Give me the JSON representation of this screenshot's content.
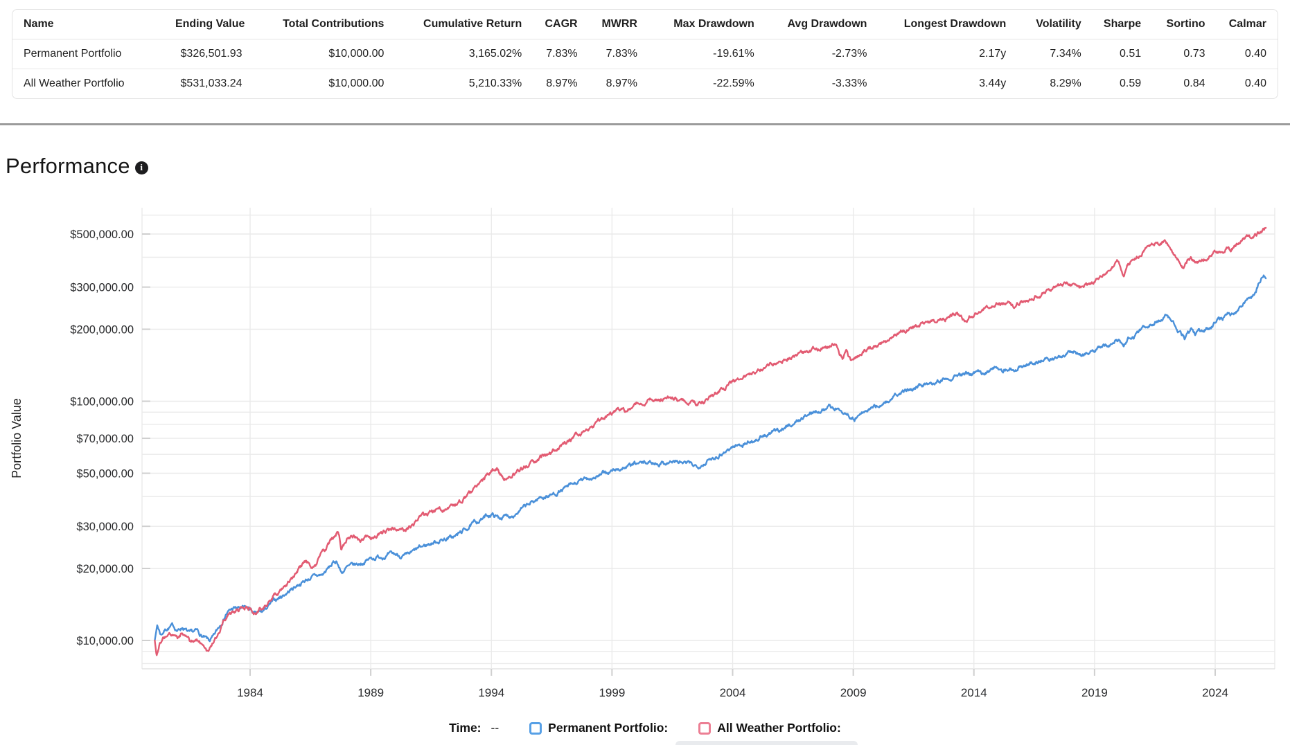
{
  "table": {
    "headers": [
      "Name",
      "Ending Value",
      "Total Contributions",
      "Cumulative Return",
      "CAGR",
      "MWRR",
      "Max Drawdown",
      "Avg Drawdown",
      "Longest Drawdown",
      "Volatility",
      "Sharpe",
      "Sortino",
      "Calmar"
    ],
    "rows": [
      {
        "name": "Permanent Portfolio",
        "values": [
          "$326,501.93",
          "$10,000.00",
          "3,165.02%",
          "7.83%",
          "7.83%",
          "-19.61%",
          "-2.73%",
          "2.17y",
          "7.34%",
          "0.51",
          "0.73",
          "0.40"
        ]
      },
      {
        "name": "All Weather Portfolio",
        "values": [
          "$531,033.24",
          "$10,000.00",
          "5,210.33%",
          "8.97%",
          "8.97%",
          "-22.59%",
          "-3.33%",
          "3.44y",
          "8.29%",
          "0.59",
          "0.84",
          "0.40"
        ]
      }
    ]
  },
  "performance": {
    "title": "Performance",
    "info_icon": "info-icon"
  },
  "chart_data": {
    "type": "line",
    "title": "Performance",
    "xlabel": "",
    "ylabel": "Portfolio Value",
    "y_scale": "log",
    "grid": true,
    "x_range": [
      1980.05,
      2026.1
    ],
    "y_range": [
      8000,
      620000
    ],
    "x_ticks": [
      1984,
      1989,
      1994,
      1999,
      2004,
      2009,
      2014,
      2019,
      2024
    ],
    "y_ticks": [
      {
        "value": 500000,
        "label": "$500,000.00"
      },
      {
        "value": 300000,
        "label": "$300,000.00"
      },
      {
        "value": 200000,
        "label": "$200,000.00"
      },
      {
        "value": 100000,
        "label": "$100,000.00"
      },
      {
        "value": 70000,
        "label": "$70,000.00"
      },
      {
        "value": 50000,
        "label": "$50,000.00"
      },
      {
        "value": 30000,
        "label": "$30,000.00"
      },
      {
        "value": 20000,
        "label": "$20,000.00"
      },
      {
        "value": 10000,
        "label": "$10,000.00"
      }
    ],
    "series": [
      {
        "name": "Permanent Portfolio",
        "color": "#4a90d9",
        "points": [
          [
            1980.05,
            10000
          ],
          [
            1980.15,
            11600
          ],
          [
            1980.3,
            10600
          ],
          [
            1980.5,
            11200
          ],
          [
            1980.8,
            11500
          ],
          [
            1981.0,
            11000
          ],
          [
            1981.2,
            11400
          ],
          [
            1981.5,
            10600
          ],
          [
            1981.8,
            10900
          ],
          [
            1982.0,
            10400
          ],
          [
            1982.3,
            9900
          ],
          [
            1982.5,
            10300
          ],
          [
            1982.7,
            11300
          ],
          [
            1983.0,
            13000
          ],
          [
            1983.3,
            13600
          ],
          [
            1983.7,
            13600
          ],
          [
            1984.0,
            13500
          ],
          [
            1984.2,
            12800
          ],
          [
            1984.5,
            13100
          ],
          [
            1985.0,
            14600
          ],
          [
            1985.5,
            15800
          ],
          [
            1986.0,
            17200
          ],
          [
            1986.5,
            18300
          ],
          [
            1987.0,
            18800
          ],
          [
            1987.4,
            20800
          ],
          [
            1987.6,
            21500
          ],
          [
            1987.78,
            19200
          ],
          [
            1988.0,
            20100
          ],
          [
            1988.5,
            20800
          ],
          [
            1989.0,
            22000
          ],
          [
            1989.5,
            22600
          ],
          [
            1990.0,
            22800
          ],
          [
            1990.5,
            22400
          ],
          [
            1991.0,
            24200
          ],
          [
            1991.5,
            25500
          ],
          [
            1992.0,
            26500
          ],
          [
            1992.5,
            27200
          ],
          [
            1993.0,
            29500
          ],
          [
            1993.5,
            31800
          ],
          [
            1994.0,
            33800
          ],
          [
            1994.3,
            32600
          ],
          [
            1994.8,
            33300
          ],
          [
            1995.0,
            34200
          ],
          [
            1995.5,
            36500
          ],
          [
            1996.0,
            39500
          ],
          [
            1996.5,
            40600
          ],
          [
            1997.0,
            42800
          ],
          [
            1997.5,
            45200
          ],
          [
            1998.0,
            47600
          ],
          [
            1998.5,
            49000
          ],
          [
            1999.0,
            51000
          ],
          [
            1999.5,
            52800
          ],
          [
            2000.0,
            54400
          ],
          [
            2000.5,
            55400
          ],
          [
            2001.0,
            55200
          ],
          [
            2001.5,
            56000
          ],
          [
            2002.0,
            55000
          ],
          [
            2002.5,
            53600
          ],
          [
            2003.0,
            56500
          ],
          [
            2003.5,
            60500
          ],
          [
            2004.0,
            64500
          ],
          [
            2004.5,
            66500
          ],
          [
            2005.0,
            69500
          ],
          [
            2005.5,
            72500
          ],
          [
            2006.0,
            76500
          ],
          [
            2006.5,
            80500
          ],
          [
            2007.0,
            86500
          ],
          [
            2007.5,
            91500
          ],
          [
            2008.0,
            95500
          ],
          [
            2008.3,
            93000
          ],
          [
            2008.8,
            88000
          ],
          [
            2009.05,
            83500
          ],
          [
            2009.3,
            88000
          ],
          [
            2009.8,
            93500
          ],
          [
            2010.0,
            95500
          ],
          [
            2010.5,
            101000
          ],
          [
            2011.0,
            108000
          ],
          [
            2011.5,
            114500
          ],
          [
            2012.0,
            118500
          ],
          [
            2012.5,
            122500
          ],
          [
            2013.0,
            126500
          ],
          [
            2013.4,
            130500
          ],
          [
            2013.6,
            127500
          ],
          [
            2014.0,
            130000
          ],
          [
            2014.5,
            133500
          ],
          [
            2015.0,
            137500
          ],
          [
            2015.5,
            136000
          ],
          [
            2016.0,
            139500
          ],
          [
            2016.5,
            145500
          ],
          [
            2017.0,
            150500
          ],
          [
            2017.5,
            155500
          ],
          [
            2018.0,
            160500
          ],
          [
            2018.3,
            156500
          ],
          [
            2018.7,
            159500
          ],
          [
            2019.0,
            162500
          ],
          [
            2019.5,
            170500
          ],
          [
            2020.0,
            181500
          ],
          [
            2020.2,
            165500
          ],
          [
            2020.4,
            180000
          ],
          [
            2020.8,
            192000
          ],
          [
            2021.0,
            201000
          ],
          [
            2021.4,
            212000
          ],
          [
            2021.8,
            222000
          ],
          [
            2022.0,
            226000
          ],
          [
            2022.3,
            210000
          ],
          [
            2022.5,
            196000
          ],
          [
            2022.75,
            182000
          ],
          [
            2023.0,
            196000
          ],
          [
            2023.2,
            190000
          ],
          [
            2023.5,
            198000
          ],
          [
            2023.8,
            206000
          ],
          [
            2024.0,
            214000
          ],
          [
            2024.3,
            224000
          ],
          [
            2024.5,
            234000
          ],
          [
            2024.7,
            230000
          ],
          [
            2025.0,
            250000
          ],
          [
            2025.3,
            266000
          ],
          [
            2025.6,
            284000
          ],
          [
            2025.9,
            320000
          ],
          [
            2026.0,
            335000
          ],
          [
            2026.1,
            326501.93
          ]
        ]
      },
      {
        "name": "All Weather Portfolio",
        "color": "#e25b72",
        "points": [
          [
            1980.05,
            10000
          ],
          [
            1980.12,
            8700
          ],
          [
            1980.25,
            9600
          ],
          [
            1980.4,
            10300
          ],
          [
            1980.7,
            10600
          ],
          [
            1981.0,
            10300
          ],
          [
            1981.2,
            10800
          ],
          [
            1981.5,
            9900
          ],
          [
            1981.8,
            10100
          ],
          [
            1982.0,
            9700
          ],
          [
            1982.2,
            9100
          ],
          [
            1982.5,
            9900
          ],
          [
            1982.7,
            10800
          ],
          [
            1983.0,
            12600
          ],
          [
            1983.3,
            13400
          ],
          [
            1983.7,
            13500
          ],
          [
            1984.0,
            13800
          ],
          [
            1984.2,
            13000
          ],
          [
            1984.5,
            13500
          ],
          [
            1985.0,
            15300
          ],
          [
            1985.5,
            17000
          ],
          [
            1986.0,
            19700
          ],
          [
            1986.3,
            21000
          ],
          [
            1986.7,
            20400
          ],
          [
            1987.0,
            23600
          ],
          [
            1987.3,
            25500
          ],
          [
            1987.6,
            28400
          ],
          [
            1987.7,
            26800
          ],
          [
            1987.78,
            23400
          ],
          [
            1988.0,
            26400
          ],
          [
            1988.3,
            27400
          ],
          [
            1988.6,
            26200
          ],
          [
            1989.0,
            27000
          ],
          [
            1989.5,
            28600
          ],
          [
            1990.0,
            29400
          ],
          [
            1990.3,
            28400
          ],
          [
            1990.7,
            29800
          ],
          [
            1991.0,
            32400
          ],
          [
            1991.5,
            34200
          ],
          [
            1992.0,
            35400
          ],
          [
            1992.5,
            36800
          ],
          [
            1993.0,
            40500
          ],
          [
            1993.5,
            44500
          ],
          [
            1994.0,
            51000
          ],
          [
            1994.2,
            52400
          ],
          [
            1994.5,
            47500
          ],
          [
            1994.8,
            48500
          ],
          [
            1995.0,
            50000
          ],
          [
            1995.5,
            53500
          ],
          [
            1996.0,
            58000
          ],
          [
            1996.5,
            61000
          ],
          [
            1997.0,
            65500
          ],
          [
            1997.5,
            71000
          ],
          [
            1998.0,
            77000
          ],
          [
            1998.5,
            82000
          ],
          [
            1999.0,
            88500
          ],
          [
            1999.3,
            92500
          ],
          [
            1999.6,
            90500
          ],
          [
            2000.0,
            96500
          ],
          [
            2000.5,
            102500
          ],
          [
            2001.0,
            101500
          ],
          [
            2001.5,
            103500
          ],
          [
            2002.0,
            100500
          ],
          [
            2002.5,
            96500
          ],
          [
            2003.0,
            103500
          ],
          [
            2003.5,
            111500
          ],
          [
            2004.0,
            121500
          ],
          [
            2004.5,
            128000
          ],
          [
            2005.0,
            134000
          ],
          [
            2005.5,
            140000
          ],
          [
            2006.0,
            147000
          ],
          [
            2006.5,
            153000
          ],
          [
            2007.0,
            158000
          ],
          [
            2007.5,
            166000
          ],
          [
            2008.0,
            170000
          ],
          [
            2008.3,
            172000
          ],
          [
            2008.55,
            149000
          ],
          [
            2008.7,
            160000
          ],
          [
            2008.9,
            147000
          ],
          [
            2009.1,
            152000
          ],
          [
            2009.5,
            160000
          ],
          [
            2010.0,
            172000
          ],
          [
            2010.5,
            182000
          ],
          [
            2011.0,
            194000
          ],
          [
            2011.5,
            204000
          ],
          [
            2012.0,
            212000
          ],
          [
            2012.5,
            218000
          ],
          [
            2013.0,
            226000
          ],
          [
            2013.3,
            230000
          ],
          [
            2013.6,
            218000
          ],
          [
            2014.0,
            233000
          ],
          [
            2014.5,
            245000
          ],
          [
            2015.0,
            258000
          ],
          [
            2015.4,
            262000
          ],
          [
            2015.7,
            249000
          ],
          [
            2016.0,
            262000
          ],
          [
            2016.5,
            272000
          ],
          [
            2017.0,
            287000
          ],
          [
            2017.5,
            297000
          ],
          [
            2018.0,
            309000
          ],
          [
            2018.3,
            299000
          ],
          [
            2018.7,
            305000
          ],
          [
            2019.0,
            315000
          ],
          [
            2019.5,
            345000
          ],
          [
            2020.0,
            388000
          ],
          [
            2020.2,
            341000
          ],
          [
            2020.35,
            378000
          ],
          [
            2020.7,
            392000
          ],
          [
            2021.0,
            424000
          ],
          [
            2021.3,
            438000
          ],
          [
            2021.6,
            448000
          ],
          [
            2021.9,
            459000
          ],
          [
            2022.1,
            444000
          ],
          [
            2022.3,
            419000
          ],
          [
            2022.45,
            396000
          ],
          [
            2022.6,
            372000
          ],
          [
            2022.7,
            358000
          ],
          [
            2022.85,
            383000
          ],
          [
            2023.0,
            392000
          ],
          [
            2023.2,
            376000
          ],
          [
            2023.5,
            390000
          ],
          [
            2023.8,
            404000
          ],
          [
            2024.0,
            418000
          ],
          [
            2024.3,
            432000
          ],
          [
            2024.5,
            442000
          ],
          [
            2024.65,
            430000
          ],
          [
            2025.0,
            462000
          ],
          [
            2025.3,
            477000
          ],
          [
            2025.6,
            492000
          ],
          [
            2025.9,
            514000
          ],
          [
            2026.0,
            524000
          ],
          [
            2026.1,
            531033.24
          ]
        ]
      }
    ],
    "legend": {
      "time_label": "Time:",
      "time_value": "--",
      "entries": [
        {
          "label": "Permanent Portfolio:",
          "swatch": "#57a0e6"
        },
        {
          "label": "All Weather Portfolio:",
          "swatch": "#ec7f94"
        }
      ]
    }
  }
}
